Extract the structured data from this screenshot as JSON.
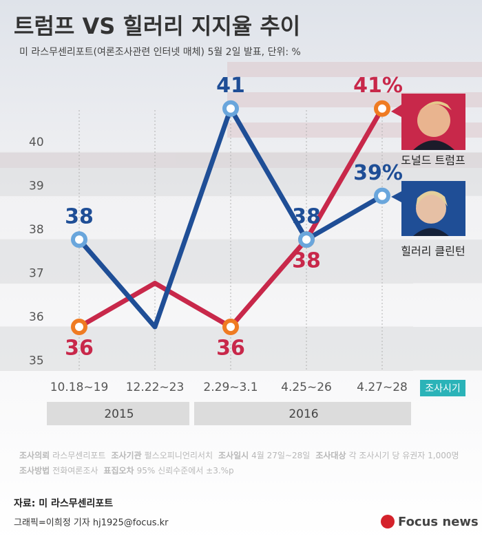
{
  "chart_data": {
    "type": "line",
    "title": "트럼프 VS 힐러리 지지율 추이",
    "subtitle": "미 라스무센리포트(여론조사관련 인터넷 매체) 5월 2일 발표, 단위: %",
    "categories": [
      "10.18~19",
      "12.22~23",
      "2.29~3.1",
      "4.25~26",
      "4.27~28"
    ],
    "x_label": "조사시기",
    "year_groups": [
      {
        "label": "2015",
        "count": 2
      },
      {
        "label": "2016",
        "count": 3
      }
    ],
    "series": [
      {
        "name": "도널드 트럼프",
        "color": "#c8284a",
        "marker_color": "#ef7b22",
        "values": [
          36,
          37,
          36,
          38,
          41
        ],
        "value_labels": [
          "36",
          null,
          "36",
          "38",
          "41%"
        ]
      },
      {
        "name": "힐러리 클린턴",
        "color": "#1f4e96",
        "marker_color": "#6aa6dc",
        "values": [
          38,
          36,
          41,
          38,
          39
        ],
        "value_labels": [
          "38",
          null,
          "41",
          "38",
          "39%"
        ]
      }
    ],
    "ylim": [
      35,
      41.5
    ],
    "yticks": [
      35,
      36,
      37,
      38,
      39,
      40
    ],
    "grid": true
  },
  "footer": {
    "notes": [
      [
        {
          "label": "조사의뢰",
          "text": "라스무센리포트"
        },
        {
          "label": "조사기관",
          "text": "펄스오피니언리서치"
        },
        {
          "label": "조사일시",
          "text": "4월 27일~28일"
        },
        {
          "label": "조사대상",
          "text": "각 조사시기 당 유권자 1,000명"
        }
      ],
      [
        {
          "label": "조사방법",
          "text": "전화여론조사"
        },
        {
          "label": "표집오차",
          "text": "95% 신뢰수준에서 ±3.%p"
        }
      ]
    ],
    "source": "자료: 미 라스무센리포트",
    "credit": "그래픽=이희정 기자 hj1925@focus.kr",
    "logo": "Focus news"
  }
}
